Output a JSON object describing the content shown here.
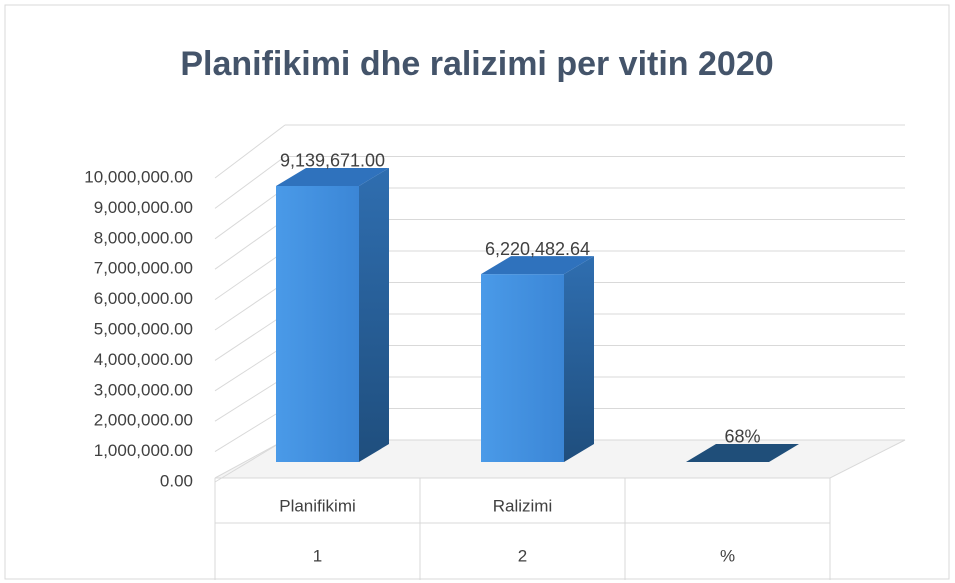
{
  "chart_data": {
    "type": "bar3d",
    "title": "Planifikimi  dhe ralizimi per vitin 2020",
    "categories": [
      "Planifikimi",
      "Ralizimi",
      null
    ],
    "groups": [
      "1",
      "2",
      "%"
    ],
    "values": [
      9139671,
      6220482.64,
      0.68
    ],
    "value_labels": [
      "9,139,671.00",
      "6,220,482.64",
      "68%"
    ],
    "color": "#3d8fe0",
    "ylim": [
      0,
      10000000
    ],
    "yticks": [
      {
        "value": 0,
        "label": "0.00"
      },
      {
        "value": 1000000,
        "label": "1,000,000.00"
      },
      {
        "value": 2000000,
        "label": "2,000,000.00"
      },
      {
        "value": 3000000,
        "label": "3,000,000.00"
      },
      {
        "value": 4000000,
        "label": "4,000,000.00"
      },
      {
        "value": 5000000,
        "label": "5,000,000.00"
      },
      {
        "value": 6000000,
        "label": "6,000,000.00"
      },
      {
        "value": 7000000,
        "label": "7,000,000.00"
      },
      {
        "value": 8000000,
        "label": "8,000,000.00"
      },
      {
        "value": 9000000,
        "label": "9,000,000.00"
      },
      {
        "value": 10000000,
        "label": "10,000,000.00"
      }
    ],
    "grid": true
  }
}
